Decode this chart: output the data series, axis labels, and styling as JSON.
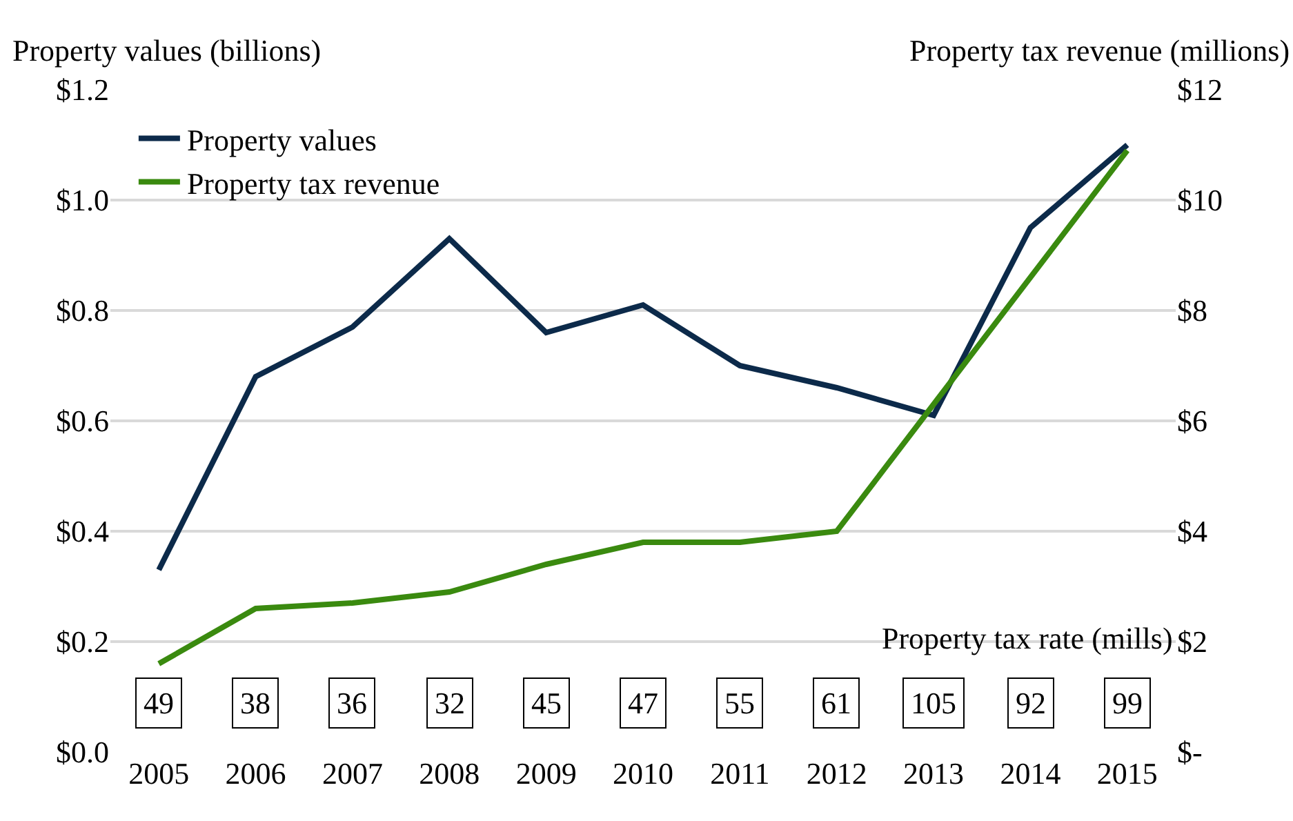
{
  "chart_data": {
    "type": "line",
    "ylabel": "Property values (billions)",
    "y2label": "Property tax revenue (millions)",
    "categories": [
      "2005",
      "2006",
      "2007",
      "2008",
      "2009",
      "2010",
      "2011",
      "2012",
      "2013",
      "2014",
      "2015"
    ],
    "series": [
      {
        "name": "Property values",
        "color": "#0c2a4a",
        "values": [
          0.33,
          0.68,
          0.77,
          0.93,
          0.76,
          0.81,
          0.7,
          0.66,
          0.61,
          0.95,
          1.1
        ]
      },
      {
        "name": "Property tax revenue",
        "color": "#3a8a0f",
        "axis": "y2",
        "values": [
          1.6,
          2.6,
          2.7,
          2.9,
          3.4,
          3.8,
          3.8,
          4.0,
          6.3,
          8.6,
          10.9
        ]
      }
    ],
    "ylim": [
      0,
      1.2
    ],
    "yticks": [
      {
        "value": 0,
        "label": "$0.0"
      },
      {
        "value": 0.2,
        "label": "$0.2"
      },
      {
        "value": 0.4,
        "label": "$0.4"
      },
      {
        "value": 0.6,
        "label": "$0.6"
      },
      {
        "value": 0.8,
        "label": "$0.8"
      },
      {
        "value": 1.0,
        "label": "$1.0"
      },
      {
        "value": 1.2,
        "label": "$1.2"
      }
    ],
    "y2lim": [
      0,
      12
    ],
    "y2ticks": [
      {
        "value": 0,
        "label": "$-"
      },
      {
        "value": 2,
        "label": "$2"
      },
      {
        "value": 4,
        "label": "$4"
      },
      {
        "value": 6,
        "label": "$6"
      },
      {
        "value": 8,
        "label": "$8"
      },
      {
        "value": 10,
        "label": "$10"
      },
      {
        "value": 12,
        "label": "$12"
      }
    ],
    "annotations": [
      "Property tax rate (mills)",
      {
        "text": "49",
        "x": "2005"
      },
      {
        "text": "38",
        "x": "2006"
      },
      {
        "text": "36",
        "x": "2007"
      },
      {
        "text": "32",
        "x": "2008"
      },
      {
        "text": "45",
        "x": "2009"
      },
      {
        "text": "47",
        "x": "2010"
      },
      {
        "text": "55",
        "x": "2011"
      },
      {
        "text": "61",
        "x": "2012"
      },
      {
        "text": "105",
        "x": "2013"
      },
      {
        "text": "92",
        "x": "2014"
      },
      {
        "text": "99",
        "x": "2015"
      }
    ],
    "grid": "y",
    "legend": "top left",
    "marker": "none",
    "line_style": "solid"
  }
}
